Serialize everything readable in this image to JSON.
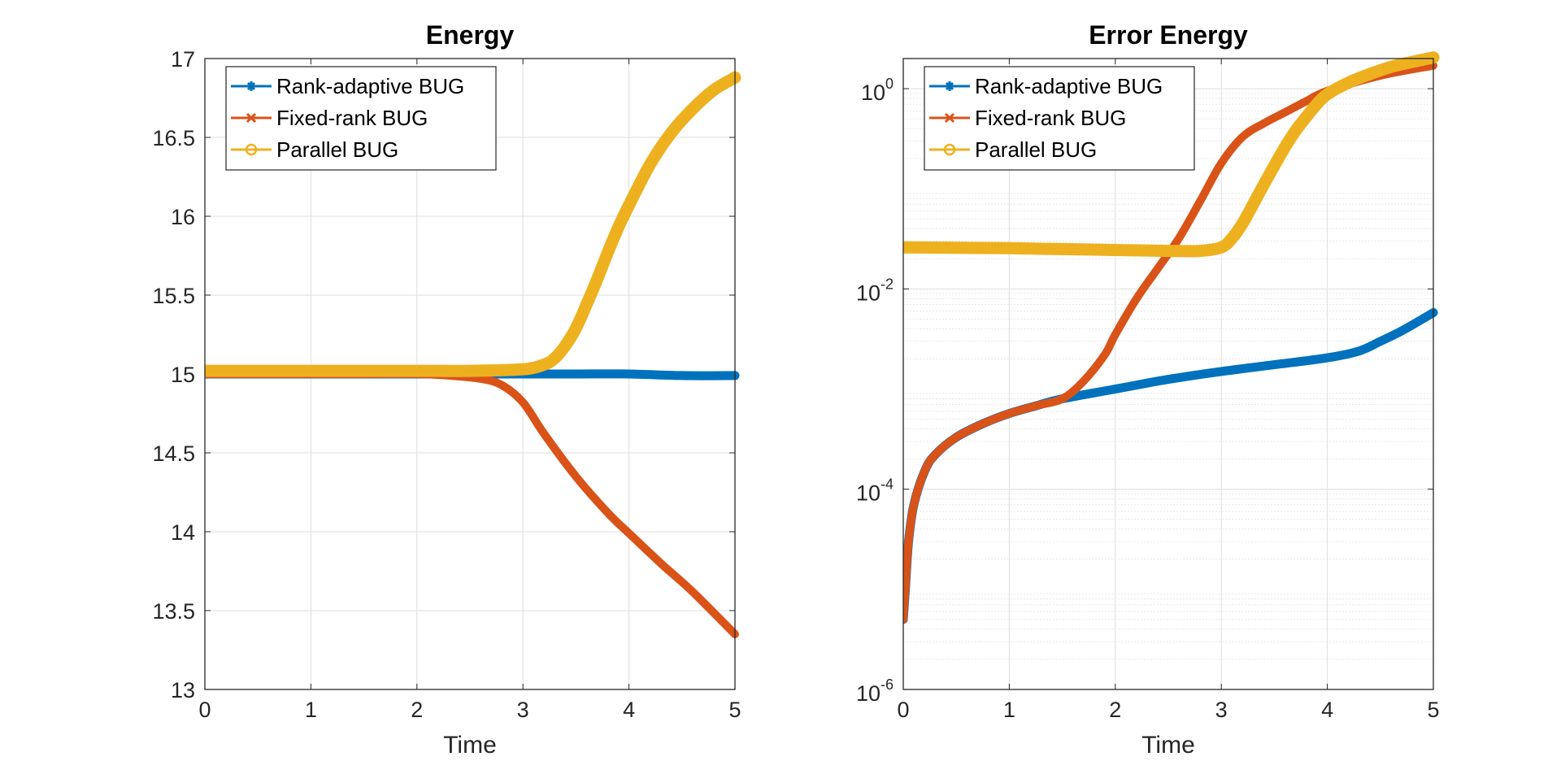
{
  "chart_data": [
    {
      "type": "line",
      "title": "Energy",
      "xlabel": "Time",
      "ylabel": "",
      "xlim": [
        0,
        5
      ],
      "ylim": [
        13,
        17
      ],
      "xticks": [
        "0",
        "1",
        "2",
        "3",
        "4",
        "5"
      ],
      "yticks": [
        "13",
        "13.5",
        "14",
        "14.5",
        "15",
        "15.5",
        "16",
        "16.5",
        "17"
      ],
      "yscale": "linear",
      "grid": true,
      "legend_location": "top-left",
      "series": [
        {
          "name": "Rank-adaptive BUG",
          "color": "#0072BD",
          "marker": "star",
          "x": [
            0,
            0.5,
            1,
            1.5,
            2,
            2.5,
            3,
            3.5,
            4,
            4.5,
            5
          ],
          "y": [
            15.0,
            15.0,
            15.0,
            15.0,
            15.0,
            15.0,
            15.0,
            15.0,
            15.0,
            14.99,
            14.99
          ]
        },
        {
          "name": "Fixed-rank BUG",
          "color": "#D95319",
          "marker": "x",
          "x": [
            0,
            0.5,
            1,
            1.5,
            2,
            2.3,
            2.6,
            2.8,
            3.0,
            3.2,
            3.5,
            3.8,
            4.0,
            4.3,
            4.6,
            5.0
          ],
          "y": [
            15.0,
            15.0,
            15.0,
            15.0,
            15.0,
            14.99,
            14.97,
            14.93,
            14.82,
            14.62,
            14.35,
            14.12,
            13.99,
            13.8,
            13.62,
            13.35
          ]
        },
        {
          "name": "Parallel BUG",
          "color": "#EDB120",
          "marker": "circle",
          "x": [
            0,
            0.5,
            1,
            1.5,
            2,
            2.5,
            3.0,
            3.2,
            3.3,
            3.4,
            3.5,
            3.6,
            3.7,
            3.8,
            3.9,
            4.0,
            4.2,
            4.4,
            4.6,
            4.8,
            5.0
          ],
          "y": [
            15.02,
            15.02,
            15.02,
            15.02,
            15.02,
            15.02,
            15.03,
            15.06,
            15.1,
            15.18,
            15.29,
            15.44,
            15.6,
            15.77,
            15.93,
            16.07,
            16.33,
            16.53,
            16.68,
            16.8,
            16.88
          ]
        }
      ]
    },
    {
      "type": "line",
      "title": "Error Energy",
      "xlabel": "Time",
      "ylabel": "",
      "xlim": [
        0,
        5
      ],
      "ylim": [
        1e-06,
        2
      ],
      "xticks": [
        "0",
        "1",
        "2",
        "3",
        "4",
        "5"
      ],
      "yticks": [
        {
          "base": "10",
          "exp": "-6",
          "value": 1e-06
        },
        {
          "base": "10",
          "exp": "-4",
          "value": 0.0001
        },
        {
          "base": "10",
          "exp": "-2",
          "value": 0.01
        },
        {
          "base": "10",
          "exp": "0",
          "value": 1
        }
      ],
      "yscale": "log",
      "grid": true,
      "minor_grid": true,
      "legend_location": "top-left",
      "series": [
        {
          "name": "Rank-adaptive BUG",
          "color": "#0072BD",
          "marker": "star",
          "x": [
            0.0,
            0.02,
            0.05,
            0.1,
            0.2,
            0.3,
            0.5,
            0.75,
            1.0,
            1.25,
            1.5,
            2.0,
            2.5,
            3.0,
            3.5,
            4.0,
            4.3,
            4.5,
            4.7,
            5.0
          ],
          "y": [
            5e-06,
            1e-05,
            3e-05,
            7e-05,
            0.00015,
            0.00022,
            0.00033,
            0.00045,
            0.00057,
            0.00068,
            0.0008,
            0.001,
            0.00125,
            0.0015,
            0.00175,
            0.00205,
            0.0024,
            0.003,
            0.0038,
            0.0058
          ]
        },
        {
          "name": "Fixed-rank BUG",
          "color": "#D95319",
          "marker": "x",
          "x": [
            0.0,
            0.02,
            0.05,
            0.1,
            0.2,
            0.3,
            0.5,
            0.75,
            1.0,
            1.25,
            1.5,
            1.7,
            1.9,
            2.0,
            2.2,
            2.4,
            2.6,
            2.8,
            3.0,
            3.2,
            3.4,
            3.6,
            3.8,
            4.0,
            4.5,
            5.0
          ],
          "y": [
            5e-06,
            1e-05,
            3e-05,
            7e-05,
            0.00015,
            0.00022,
            0.00033,
            0.00045,
            0.00057,
            0.00068,
            0.0008,
            0.0012,
            0.0022,
            0.0035,
            0.008,
            0.016,
            0.032,
            0.075,
            0.18,
            0.33,
            0.45,
            0.58,
            0.75,
            0.95,
            1.35,
            1.7
          ]
        },
        {
          "name": "Parallel BUG",
          "color": "#EDB120",
          "marker": "circle",
          "x": [
            0.0,
            0.5,
            1.0,
            1.5,
            2.0,
            2.5,
            2.8,
            3.0,
            3.1,
            3.2,
            3.3,
            3.4,
            3.5,
            3.6,
            3.7,
            3.8,
            3.9,
            4.0,
            4.2,
            4.4,
            4.6,
            4.8,
            5.0
          ],
          "y": [
            0.026,
            0.0258,
            0.0255,
            0.025,
            0.0245,
            0.024,
            0.024,
            0.026,
            0.032,
            0.045,
            0.07,
            0.11,
            0.17,
            0.26,
            0.38,
            0.52,
            0.7,
            0.88,
            1.15,
            1.4,
            1.65,
            1.85,
            2.05
          ]
        }
      ]
    }
  ]
}
